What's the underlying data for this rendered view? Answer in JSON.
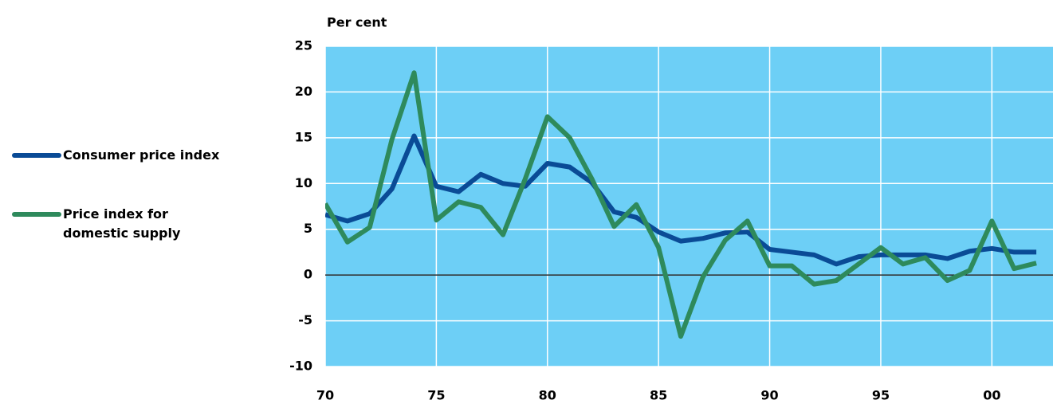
{
  "chart_data": {
    "type": "line",
    "y_label": "Per cent",
    "x": [
      1970,
      1971,
      1972,
      1973,
      1974,
      1975,
      1976,
      1977,
      1978,
      1979,
      1980,
      1981,
      1982,
      1983,
      1984,
      1985,
      1986,
      1987,
      1988,
      1989,
      1990,
      1991,
      1992,
      1993,
      1994,
      1995,
      1996,
      1997,
      1998,
      1999,
      2000,
      2001,
      2002
    ],
    "series": [
      {
        "name": "Consumer price index",
        "color": "#0a4b96",
        "values": [
          6.6,
          5.9,
          6.7,
          9.4,
          15.2,
          9.7,
          9.1,
          11.0,
          10.0,
          9.7,
          12.2,
          11.8,
          10.1,
          6.9,
          6.3,
          4.7,
          3.7,
          4.0,
          4.6,
          4.7,
          2.8,
          2.5,
          2.2,
          1.2,
          2.0,
          2.2,
          2.2,
          2.2,
          1.8,
          2.6,
          2.9,
          2.5,
          2.5
        ]
      },
      {
        "name": "Price index for domestic supply",
        "color": "#2e8a5c",
        "values": [
          7.8,
          3.6,
          5.2,
          14.8,
          22.1,
          6.0,
          8.0,
          7.4,
          4.4,
          10.5,
          17.3,
          15.0,
          10.5,
          5.3,
          7.7,
          3.0,
          -6.7,
          -0.2,
          3.8,
          5.9,
          1.0,
          1.0,
          -1.0,
          -0.6,
          1.2,
          3.0,
          1.2,
          1.9,
          -0.6,
          0.5,
          5.9,
          0.7,
          1.3
        ]
      }
    ],
    "xlim": [
      1970,
      2002.75
    ],
    "xticks": [
      {
        "value": 1970,
        "label": "70"
      },
      {
        "value": 1975,
        "label": "75"
      },
      {
        "value": 1980,
        "label": "80"
      },
      {
        "value": 1985,
        "label": "85"
      },
      {
        "value": 1990,
        "label": "90"
      },
      {
        "value": 1995,
        "label": "95"
      },
      {
        "value": 2000,
        "label": "00"
      }
    ],
    "ylim": [
      -10,
      25
    ],
    "yticks": [
      -10,
      -5,
      0,
      5,
      10,
      15,
      20,
      25
    ],
    "background": "#6dcff6",
    "grid": true
  }
}
